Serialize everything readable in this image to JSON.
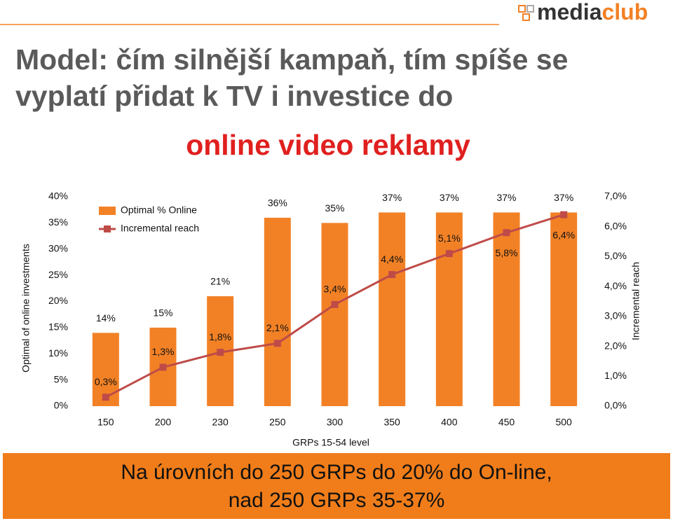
{
  "logo": [
    "media",
    "club"
  ],
  "header": {
    "title_lines": [
      "Model: čím silnější kampaň, tím spíše se",
      "vyplatí přidat k TV i investice do"
    ],
    "highlight": "online video reklamy"
  },
  "chart_data": {
    "type": "combo",
    "x_label": "GRPs 15-54 level",
    "y_label": "Optimal   of online investments",
    "y2_label": "Incremental reach",
    "categories": [
      "150",
      "200",
      "230",
      "250",
      "300",
      "350",
      "400",
      "450",
      "500"
    ],
    "series": [
      {
        "name": "Optimal % Online",
        "type": "bar",
        "color": "#f28126",
        "values": [
          14,
          15,
          21,
          36,
          35,
          37,
          37,
          37,
          37
        ],
        "value_labels": [
          "14%",
          "15%",
          "21%",
          "36%",
          "35%",
          "37%",
          "37%",
          "37%",
          "37%"
        ]
      },
      {
        "name": "Incremental reach",
        "type": "line",
        "axis": "y2",
        "color": "#be4b48",
        "values": [
          0.3,
          1.3,
          1.8,
          2.1,
          3.4,
          4.4,
          5.1,
          5.8,
          6.4
        ],
        "value_labels": [
          "0,3%",
          "1,3%",
          "1,8%",
          "2,1%",
          "3,4%",
          "4,4%",
          "5,1%",
          "5,8%",
          "6,4%"
        ]
      }
    ],
    "ylim": [
      0,
      40
    ],
    "yticks": [
      {
        "value": 0,
        "label": "0%"
      },
      {
        "value": 5,
        "label": "5%"
      },
      {
        "value": 10,
        "label": "10%"
      },
      {
        "value": 15,
        "label": "15%"
      },
      {
        "value": 20,
        "label": "20%"
      },
      {
        "value": 25,
        "label": "25%"
      },
      {
        "value": 30,
        "label": "30%"
      },
      {
        "value": 35,
        "label": "35%"
      },
      {
        "value": 40,
        "label": "40%"
      }
    ],
    "y2lim": [
      0,
      7
    ],
    "y2ticks": [
      {
        "value": 0,
        "label": "0,0%"
      },
      {
        "value": 1,
        "label": "1,0%"
      },
      {
        "value": 2,
        "label": "2,0%"
      },
      {
        "value": 3,
        "label": "3,0%"
      },
      {
        "value": 4,
        "label": "4,0%"
      },
      {
        "value": 5,
        "label": "5,0%"
      },
      {
        "value": 6,
        "label": "6,0%"
      },
      {
        "value": 7,
        "label": "7,0%"
      }
    ],
    "legend": "upper left"
  },
  "footer": {
    "lines": [
      "Na úrovních do 250 GRPs do 20% do On-line,",
      "nad 250 GRPs 35-37%"
    ]
  }
}
